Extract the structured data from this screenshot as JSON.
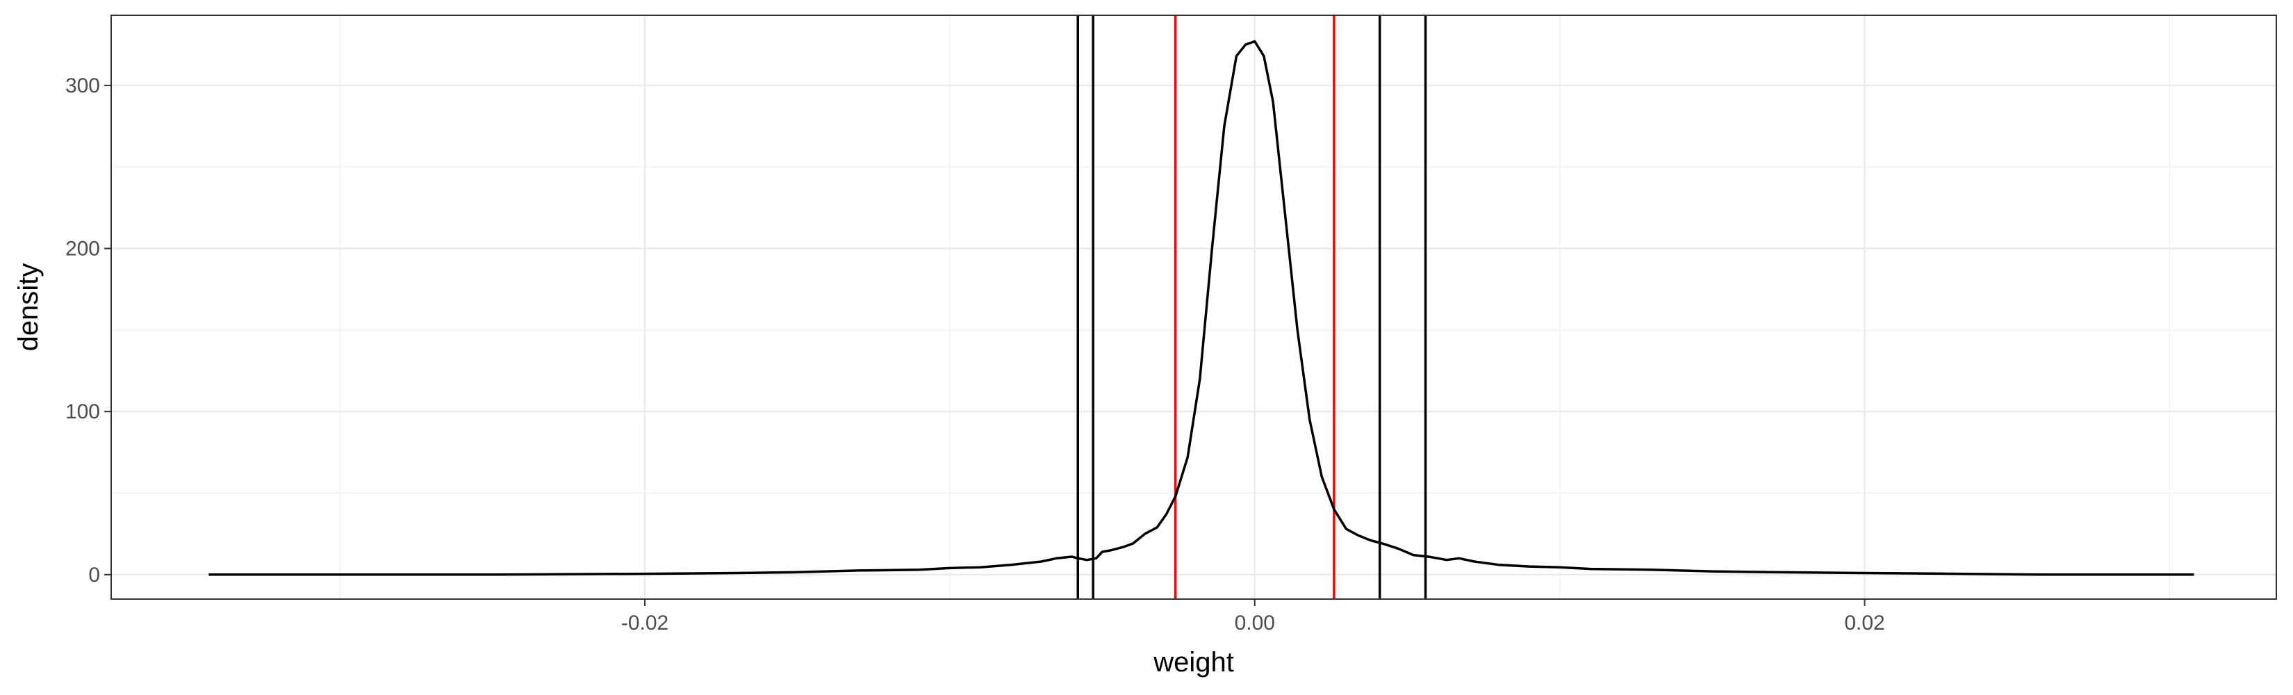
{
  "chart_data": {
    "type": "line",
    "title": "",
    "xlabel": "weight",
    "ylabel": "density",
    "xlim": [
      -0.0375,
      0.0335
    ],
    "ylim": [
      -15,
      343
    ],
    "x_ticks": [
      -0.02,
      0.0,
      0.02
    ],
    "x_tick_labels": [
      "-0.02",
      "0.00",
      "0.02"
    ],
    "y_ticks": [
      0,
      100,
      200,
      300
    ],
    "y_tick_labels": [
      "0",
      "100",
      "200",
      "300"
    ],
    "grid": true,
    "legend": "none",
    "series": [
      {
        "color": "#000000",
        "x": [
          -0.0343,
          -0.03,
          -0.025,
          -0.02,
          -0.017,
          -0.015,
          -0.013,
          -0.011,
          -0.01,
          -0.009,
          -0.008,
          -0.007,
          -0.0065,
          -0.006,
          -0.0058,
          -0.0055,
          -0.0052,
          -0.005,
          -0.0047,
          -0.0043,
          -0.004,
          -0.0036,
          -0.0032,
          -0.0029,
          -0.0026,
          -0.0022,
          -0.0018,
          -0.0014,
          -0.001,
          -0.0006,
          -0.0003,
          0.0,
          0.0003,
          0.0006,
          0.001,
          0.0014,
          0.0018,
          0.0022,
          0.0026,
          0.003,
          0.0034,
          0.0038,
          0.0042,
          0.0047,
          0.0052,
          0.0057,
          0.006,
          0.0063,
          0.0067,
          0.0072,
          0.008,
          0.009,
          0.01,
          0.011,
          0.013,
          0.015,
          0.017,
          0.02,
          0.023,
          0.026,
          0.03,
          0.0308
        ],
        "y": [
          0,
          0,
          0,
          0.5,
          1,
          1.5,
          2.5,
          3,
          4,
          4.5,
          6,
          8,
          10,
          11,
          10,
          9,
          10,
          14,
          15,
          17,
          19,
          25,
          29,
          37,
          48,
          72,
          120,
          200,
          275,
          318,
          325,
          327,
          318,
          290,
          220,
          150,
          95,
          60,
          40,
          28,
          24,
          21,
          19,
          16,
          12,
          11,
          10,
          9,
          10,
          8,
          6,
          5,
          4.5,
          3.5,
          3,
          2,
          1.5,
          1,
          0.5,
          0,
          0,
          0
        ]
      }
    ],
    "vlines": [
      {
        "x": -0.0058,
        "color": "#000000"
      },
      {
        "x": -0.0053,
        "color": "#000000"
      },
      {
        "x": -0.0026,
        "color": "#ff0000"
      },
      {
        "x": 0.0026,
        "color": "#ff0000"
      },
      {
        "x": 0.0041,
        "color": "#000000"
      },
      {
        "x": 0.0056,
        "color": "#000000"
      }
    ]
  }
}
